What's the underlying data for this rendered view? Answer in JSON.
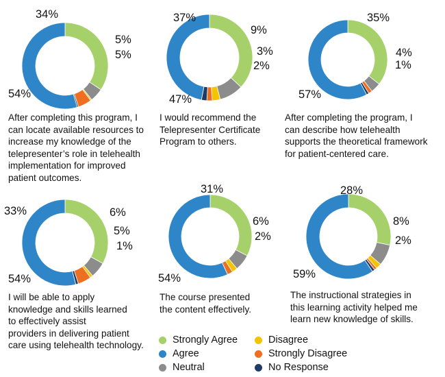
{
  "colors": {
    "strongly_agree": "#a6d06a",
    "agree": "#2e86c8",
    "neutral": "#8c8c8c",
    "disagree": "#f5c400",
    "strongly_disagree": "#ee6f21",
    "no_response": "#1f3c64"
  },
  "chart_data": [
    {
      "type": "pie",
      "title": "After completing this program, I can locate available resources to increase my knowledge of the telepresenter's role in telehealth implementation for improved patient outcomes.",
      "categories": [
        "Strongly Agree",
        "Agree",
        "Neutral",
        "Disagree",
        "Strongly Disagree",
        "No Response"
      ],
      "values": [
        34,
        54,
        5,
        0.5,
        5,
        0.5
      ],
      "data_labels": [
        "34%",
        "54%",
        "5%",
        "",
        "5%",
        ""
      ]
    },
    {
      "type": "pie",
      "title": "I would recommend the Telepresenter Certificate Program to others.",
      "categories": [
        "Strongly Agree",
        "Agree",
        "Neutral",
        "Disagree",
        "Strongly Disagree",
        "No Response"
      ],
      "values": [
        37,
        47,
        9,
        3,
        2,
        2
      ],
      "data_labels": [
        "37%",
        "47%",
        "9%",
        "3%",
        "",
        "2%"
      ]
    },
    {
      "type": "pie",
      "title": "After completing the program, I can describe how telehealth supports the theoretical framework for patient-centered care.",
      "categories": [
        "Strongly Agree",
        "Agree",
        "Neutral",
        "Disagree",
        "Strongly Disagree",
        "No Response"
      ],
      "values": [
        35,
        57,
        4,
        0,
        1.5,
        1
      ],
      "data_labels": [
        "35%",
        "57%",
        "4%",
        "",
        "",
        "1%"
      ]
    },
    {
      "type": "pie",
      "title": "I will be able to apply knowledge and skills learned to effectively assist providers in delivering patient care using telehealth technology.",
      "categories": [
        "Strongly Agree",
        "Agree",
        "Neutral",
        "Disagree",
        "Strongly Disagree",
        "No Response"
      ],
      "values": [
        33,
        54,
        6,
        1,
        5,
        1
      ],
      "data_labels": [
        "33%",
        "54%",
        "6%",
        "1%",
        "5%",
        ""
      ]
    },
    {
      "type": "pie",
      "title": "The course presented the content effectively.",
      "categories": [
        "Strongly Agree",
        "Agree",
        "Neutral",
        "Disagree",
        "Strongly Disagree",
        "No Response"
      ],
      "values": [
        31,
        54,
        6,
        2,
        2,
        0
      ],
      "data_labels": [
        "31%",
        "54%",
        "6%",
        "2%",
        "",
        ""
      ]
    },
    {
      "type": "pie",
      "title": "The instructional strategies in this learning activity helped me learn new knowledge of skills.",
      "categories": [
        "Strongly Agree",
        "Agree",
        "Neutral",
        "Disagree",
        "Strongly Disagree",
        "No Response"
      ],
      "values": [
        28,
        59,
        8,
        2,
        1,
        1
      ],
      "data_labels": [
        "28%",
        "59%",
        "8%",
        "2%",
        "",
        ""
      ]
    }
  ],
  "legend": [
    {
      "label": "Strongly Agree",
      "color": "#a6d06a"
    },
    {
      "label": "Agree",
      "color": "#2e86c8"
    },
    {
      "label": "Neutral",
      "color": "#8c8c8c"
    },
    {
      "label": "Disagree",
      "color": "#f5c400"
    },
    {
      "label": "Strongly Disagree",
      "color": "#ee6f21"
    },
    {
      "label": "No Response",
      "color": "#1f3c64"
    }
  ],
  "captions": {
    "c1": [
      "After completing this program, I",
      "can locate available resources to",
      "increase my knowledge of the",
      "telepresenter’s role in telehealth",
      "implementation for improved",
      "patient outcomes."
    ],
    "c2": [
      "I would recommend the",
      "Telepresenter Certificate",
      "Program to others."
    ],
    "c3": [
      "After completing the program, I",
      "can describe how telehealth",
      "supports the theoretical framework",
      "for patient-centered care."
    ],
    "c4": [
      "I will be able to apply",
      "knowledge and skills learned",
      "to effectively assist",
      "providers in delivering patient",
      "care using telehealth technology."
    ],
    "c5": [
      "The course presented",
      "the content effectively."
    ],
    "c6": [
      "The instructional strategies in",
      "this learning activity helped me",
      "learn new knowledge of skills."
    ]
  }
}
